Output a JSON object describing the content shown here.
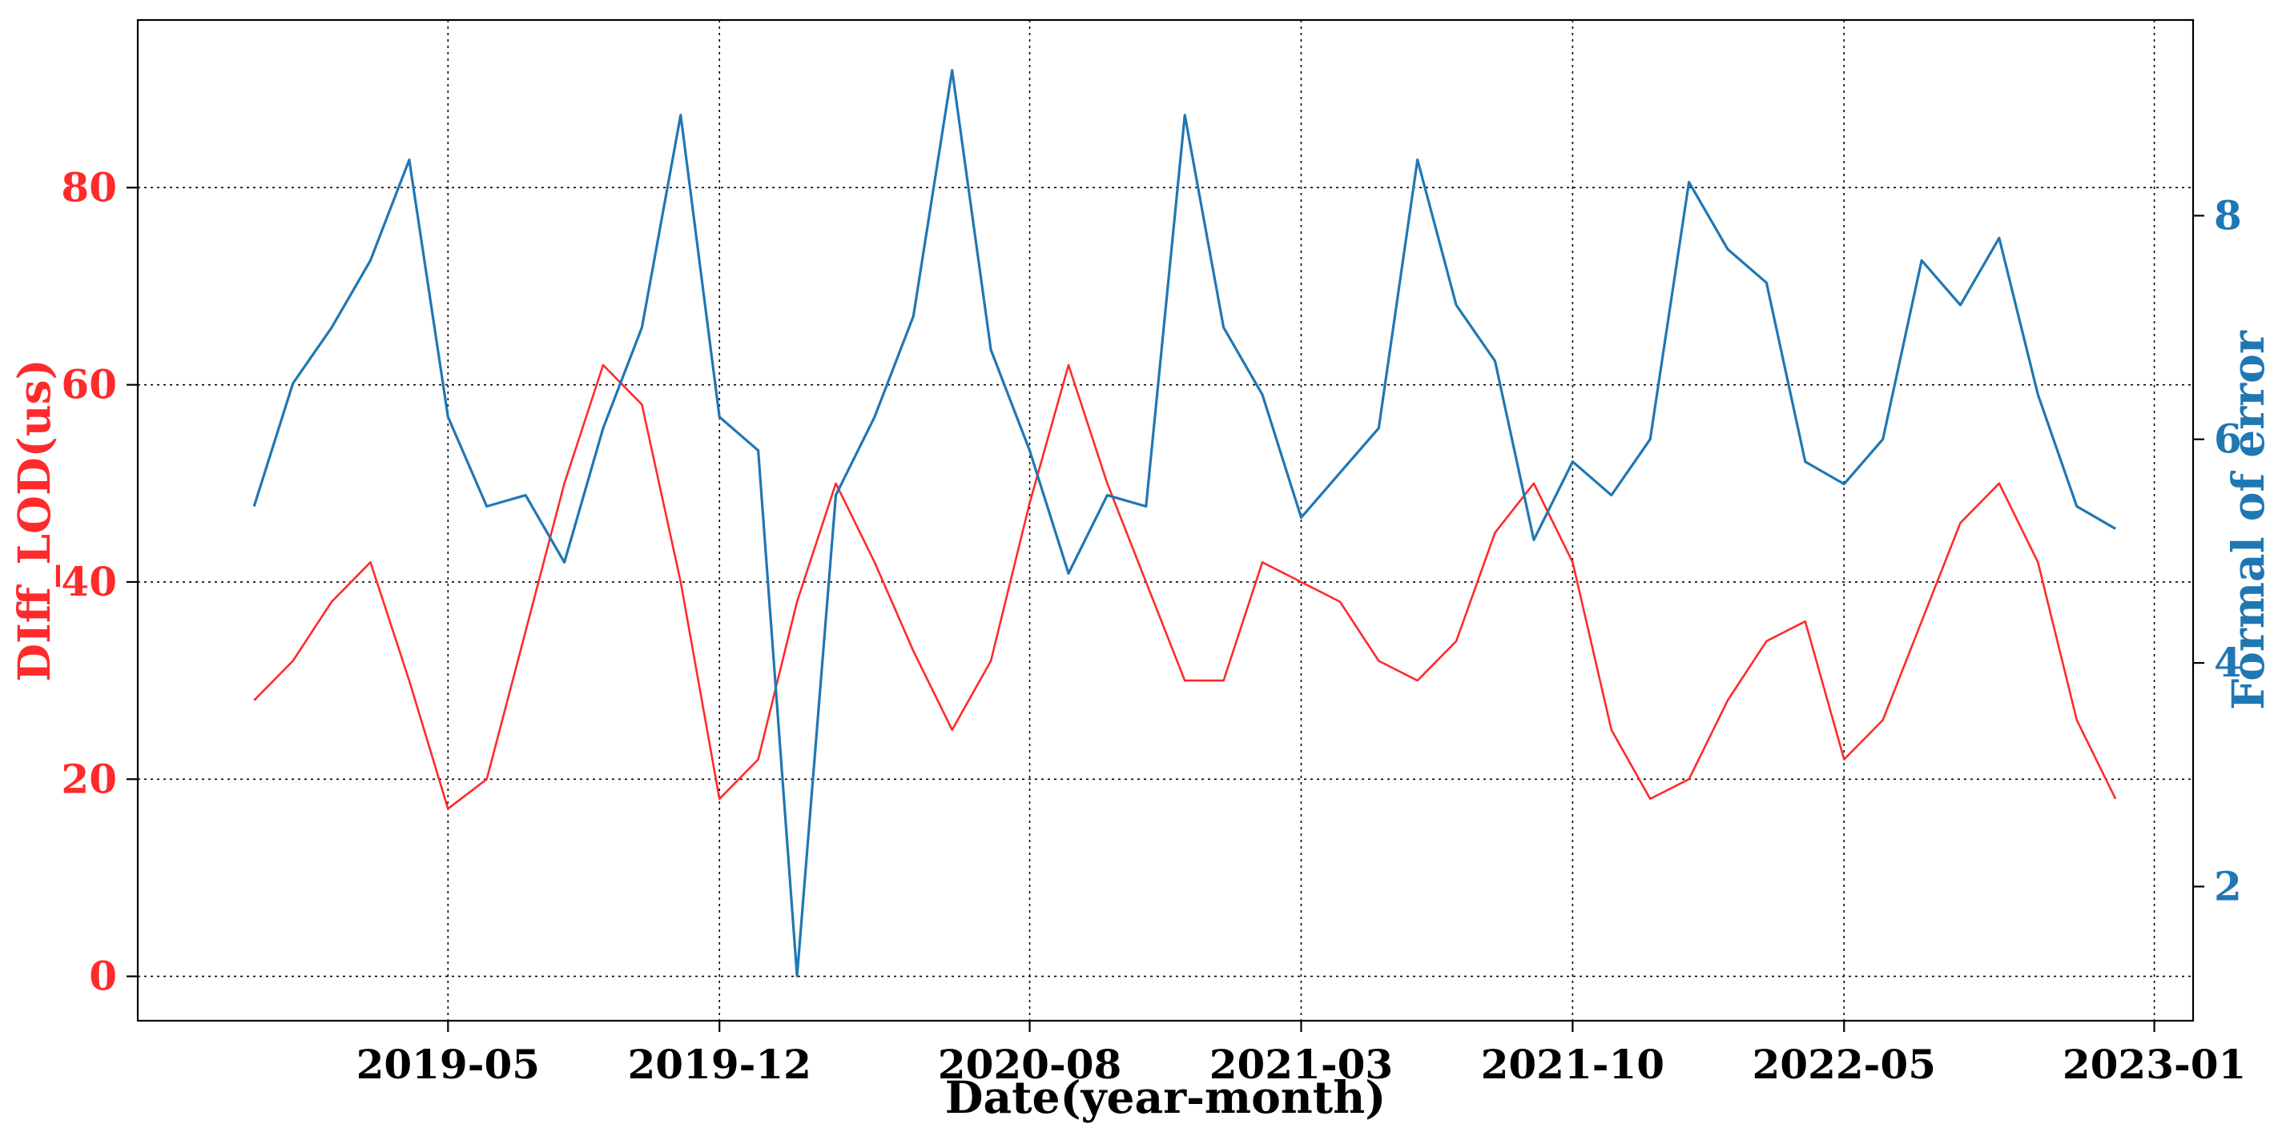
{
  "chart_data": {
    "type": "line",
    "xlabel": "Date(year-month)",
    "ylabel_left": "DIff_LOD(us)",
    "ylabel_right": "Formal of error",
    "x_ticks": [
      "2019-05",
      "2019-12",
      "2020-08",
      "2021-03",
      "2021-10",
      "2022-05",
      "2023-01"
    ],
    "x_range": [
      "2018-09",
      "2023-02"
    ],
    "y_left_ticks": [
      "0",
      "20",
      "40",
      "60",
      "80"
    ],
    "y_left_range": [
      -4.5,
      97
    ],
    "y_right_ticks": [
      "2",
      "4",
      "6",
      "8"
    ],
    "y_right_range": [
      0.8,
      9.75
    ],
    "grid": true,
    "colors": {
      "diff_lod": "#ff2a2a",
      "formal_error": "#1f77b4",
      "axes": "#000000"
    },
    "series": [
      {
        "axis": "left",
        "color": "#ff2a2a",
        "points": [
          [
            "2018-12",
            28
          ],
          [
            "2019-01",
            32
          ],
          [
            "2019-02",
            38
          ],
          [
            "2019-03",
            42
          ],
          [
            "2019-04",
            30
          ],
          [
            "2019-05",
            17
          ],
          [
            "2019-06",
            20
          ],
          [
            "2019-07",
            35
          ],
          [
            "2019-08",
            50
          ],
          [
            "2019-09",
            62
          ],
          [
            "2019-10",
            58
          ],
          [
            "2019-11",
            40
          ],
          [
            "2019-12",
            18
          ],
          [
            "2020-01",
            22
          ],
          [
            "2020-02",
            38
          ],
          [
            "2020-03",
            50
          ],
          [
            "2020-04",
            42
          ],
          [
            "2020-05",
            33
          ],
          [
            "2020-06",
            25
          ],
          [
            "2020-07",
            32
          ],
          [
            "2020-08",
            48
          ],
          [
            "2020-09",
            62
          ],
          [
            "2020-10",
            50
          ],
          [
            "2020-11",
            40
          ],
          [
            "2020-12",
            30
          ],
          [
            "2021-01",
            30
          ],
          [
            "2021-02",
            42
          ],
          [
            "2021-03",
            40
          ],
          [
            "2021-04",
            38
          ],
          [
            "2021-05",
            32
          ],
          [
            "2021-06",
            30
          ],
          [
            "2021-07",
            34
          ],
          [
            "2021-08",
            45
          ],
          [
            "2021-09",
            50
          ],
          [
            "2021-10",
            42
          ],
          [
            "2021-11",
            25
          ],
          [
            "2021-12",
            18
          ],
          [
            "2022-01",
            20
          ],
          [
            "2022-02",
            28
          ],
          [
            "2022-03",
            34
          ],
          [
            "2022-04",
            36
          ],
          [
            "2022-05",
            22
          ],
          [
            "2022-06",
            26
          ],
          [
            "2022-07",
            36
          ],
          [
            "2022-08",
            46
          ],
          [
            "2022-09",
            50
          ],
          [
            "2022-10",
            42
          ],
          [
            "2022-11",
            26
          ],
          [
            "2022-12",
            18
          ]
        ]
      },
      {
        "axis": "right",
        "color": "#1f77b4",
        "points": [
          [
            "2018-12",
            5.4
          ],
          [
            "2019-01",
            6.5
          ],
          [
            "2019-02",
            7.0
          ],
          [
            "2019-03",
            7.6
          ],
          [
            "2019-04",
            8.5
          ],
          [
            "2019-05",
            6.2
          ],
          [
            "2019-06",
            5.4
          ],
          [
            "2019-07",
            5.5
          ],
          [
            "2019-08",
            4.9
          ],
          [
            "2019-09",
            6.1
          ],
          [
            "2019-10",
            7.0
          ],
          [
            "2019-11",
            8.9
          ],
          [
            "2019-12",
            6.2
          ],
          [
            "2020-01",
            5.9
          ],
          [
            "2020-02",
            1.2
          ],
          [
            "2020-03",
            5.5
          ],
          [
            "2020-04",
            6.2
          ],
          [
            "2020-05",
            7.1
          ],
          [
            "2020-06",
            9.3
          ],
          [
            "2020-07",
            6.8
          ],
          [
            "2020-08",
            5.9
          ],
          [
            "2020-09",
            4.8
          ],
          [
            "2020-10",
            5.5
          ],
          [
            "2020-11",
            5.4
          ],
          [
            "2020-12",
            8.9
          ],
          [
            "2021-01",
            7.0
          ],
          [
            "2021-02",
            6.4
          ],
          [
            "2021-03",
            5.3
          ],
          [
            "2021-04",
            5.7
          ],
          [
            "2021-05",
            6.1
          ],
          [
            "2021-06",
            8.5
          ],
          [
            "2021-07",
            7.2
          ],
          [
            "2021-08",
            6.7
          ],
          [
            "2021-09",
            5.1
          ],
          [
            "2021-10",
            5.8
          ],
          [
            "2021-11",
            5.5
          ],
          [
            "2021-12",
            6.0
          ],
          [
            "2022-01",
            8.3
          ],
          [
            "2022-02",
            7.7
          ],
          [
            "2022-03",
            7.4
          ],
          [
            "2022-04",
            5.8
          ],
          [
            "2022-05",
            5.6
          ],
          [
            "2022-06",
            6.0
          ],
          [
            "2022-07",
            7.6
          ],
          [
            "2022-08",
            7.2
          ],
          [
            "2022-09",
            7.8
          ],
          [
            "2022-10",
            6.4
          ],
          [
            "2022-11",
            5.4
          ],
          [
            "2022-12",
            5.2
          ]
        ]
      }
    ]
  }
}
